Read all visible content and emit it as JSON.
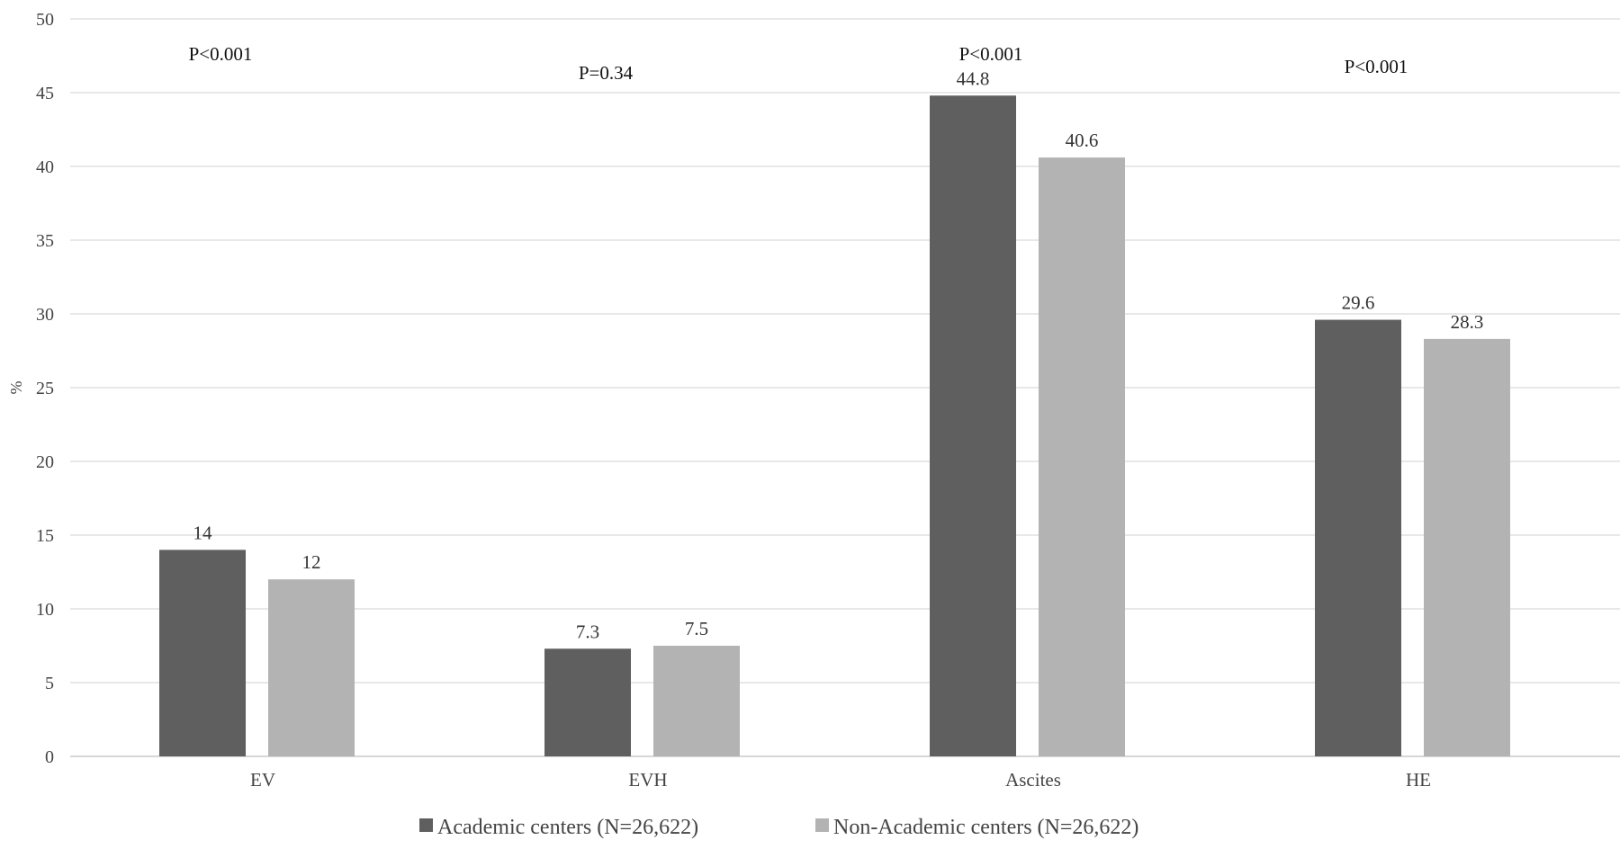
{
  "chart_data": {
    "type": "bar",
    "title": "",
    "xlabel": "",
    "ylabel": "%",
    "ylim": [
      0,
      50
    ],
    "yticks": [
      0,
      5,
      10,
      15,
      20,
      25,
      30,
      35,
      40,
      45,
      50
    ],
    "grid": true,
    "legend_position": "bottom",
    "categories": [
      "EV",
      "EVH",
      "Ascites",
      "HE"
    ],
    "series": [
      {
        "name": "Academic centers (N=26,622)",
        "color": "#5f5f5f",
        "values": [
          14,
          7.3,
          44.8,
          29.6
        ],
        "labels": [
          "14",
          "7.3",
          "44.8",
          "29.6"
        ]
      },
      {
        "name": "Non-Academic centers (N=26,622)",
        "color": "#b3b3b3",
        "values": [
          12,
          7.5,
          40.6,
          28.3
        ],
        "labels": [
          "12",
          "7.5",
          "40.6",
          "28.3"
        ]
      }
    ],
    "annotations": [
      "P<0.001",
      "P=0.34",
      "P<0.001",
      "P<0.001"
    ]
  }
}
